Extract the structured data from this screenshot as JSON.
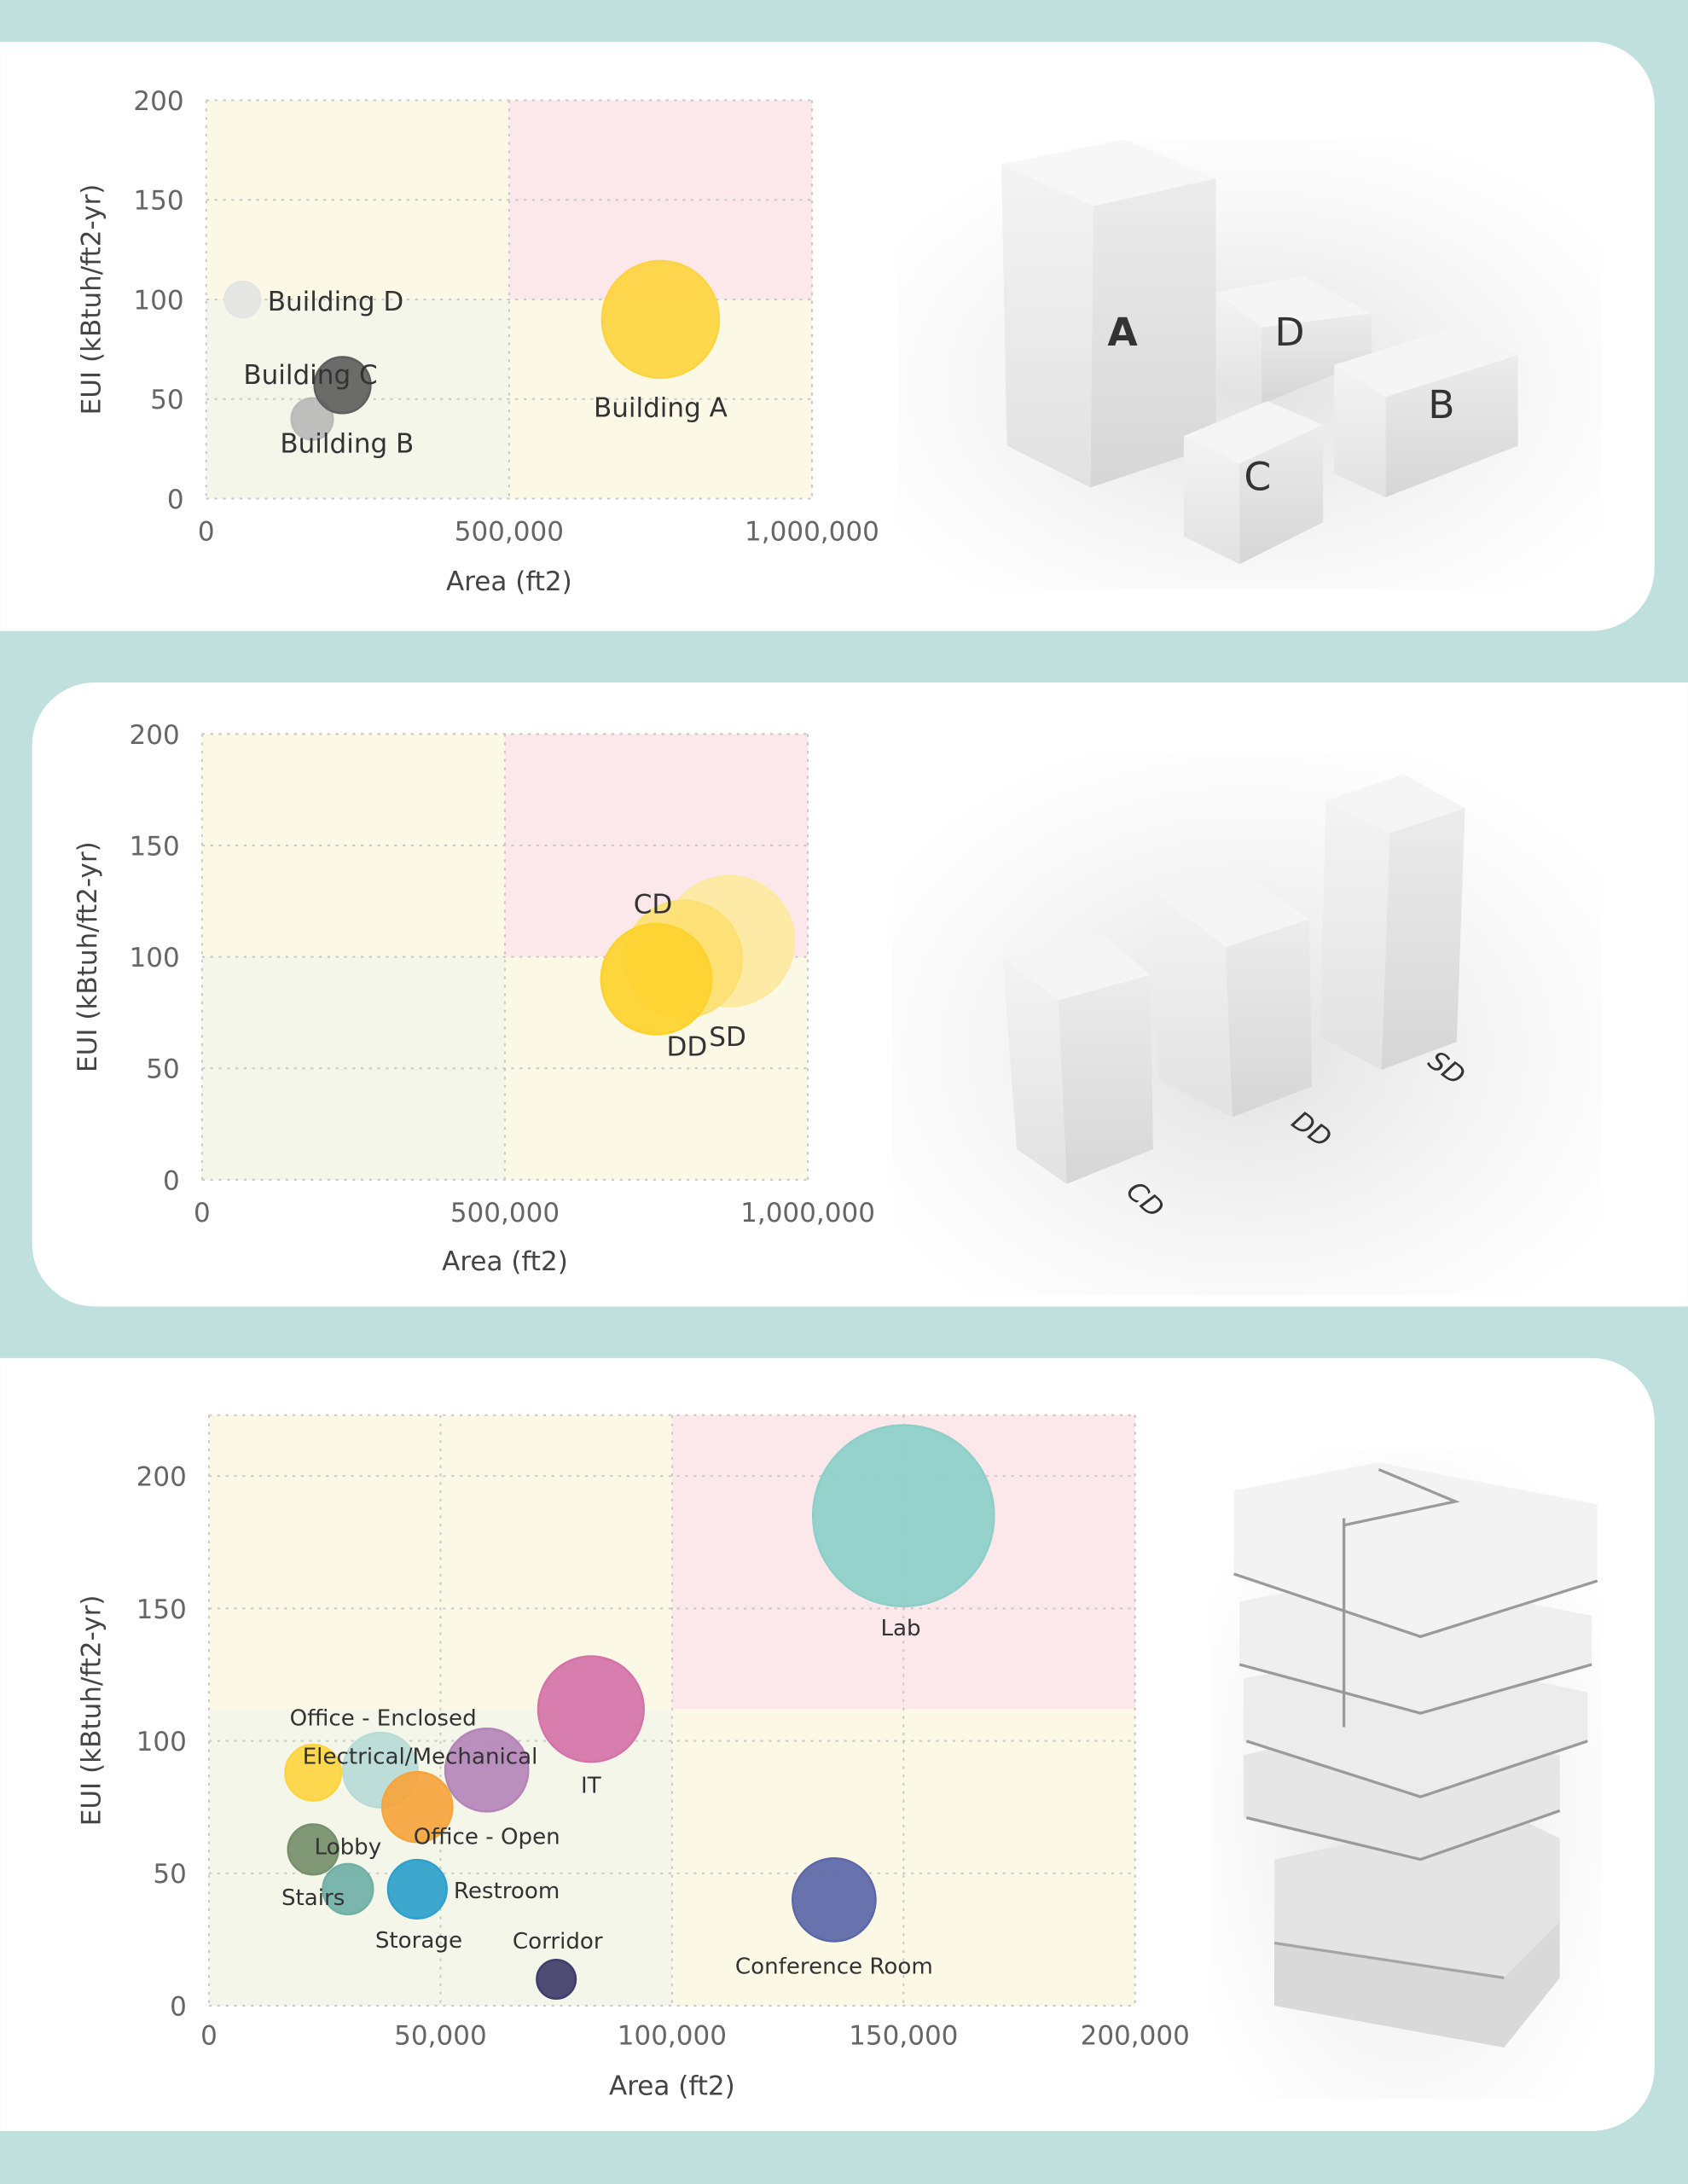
{
  "chart_data": [
    {
      "type": "scatter",
      "xlabel": "Area (ft2)",
      "ylabel": "EUI (kBtuh/ft2-yr)",
      "xlim": [
        0,
        1000000
      ],
      "ylim": [
        0,
        200
      ],
      "xticks": [
        0,
        500000,
        1000000
      ],
      "xtick_labels": [
        "0",
        "500,000",
        "1,000,000"
      ],
      "yticks": [
        0,
        50,
        100,
        150,
        200
      ],
      "ytick_labels": [
        "0",
        "50",
        "100",
        "150",
        "200"
      ],
      "grid": true,
      "quadrant_thresholds": {
        "x": 500000,
        "y": 100
      },
      "quadrant_colors": {
        "low": "#f4f6e9",
        "mixed": "#fbf9e6",
        "high": "#fce8ea"
      },
      "points": [
        {
          "name": "Building D",
          "x": 60000,
          "y": 100,
          "size": 9.4,
          "color": "#e4e4e4"
        },
        {
          "name": "Building B",
          "x": 175000,
          "y": 40,
          "size": 12.6,
          "color": "#b9b9b9"
        },
        {
          "name": "Building C",
          "x": 225000,
          "y": 57,
          "size": 23,
          "color": "#5e5e5e"
        },
        {
          "name": "Building A",
          "x": 750000,
          "y": 90,
          "size": 100,
          "color": "#fdd43f"
        }
      ]
    },
    {
      "type": "scatter",
      "xlabel": "Area (ft2)",
      "ylabel": "EUI (kBtuh/ft2-yr)",
      "xlim": [
        0,
        1000000
      ],
      "ylim": [
        0,
        200
      ],
      "xticks": [
        0,
        500000,
        1000000
      ],
      "xtick_labels": [
        "0",
        "500,000",
        "1,000,000"
      ],
      "yticks": [
        0,
        50,
        100,
        150,
        200
      ],
      "ytick_labels": [
        "0",
        "50",
        "100",
        "150",
        "200"
      ],
      "grid": true,
      "quadrant_thresholds": {
        "x": 500000,
        "y": 100
      },
      "quadrant_colors": {
        "low": "#f4f6e9",
        "mixed": "#fbf9e6",
        "high": "#fce8ea"
      },
      "points": [
        {
          "name": "SD",
          "x": 870000,
          "y": 107,
          "size": 124,
          "color": "#fde9a0"
        },
        {
          "name": "CD",
          "x": 795000,
          "y": 99,
          "size": 100,
          "color": "#fde072"
        },
        {
          "name": "DD",
          "x": 750000,
          "y": 90,
          "size": 89,
          "color": "#fdd22e"
        }
      ]
    },
    {
      "type": "scatter",
      "xlabel": "Area (ft2)",
      "ylabel": "EUI (kBtuh/ft2-yr)",
      "xlim": [
        0,
        200000
      ],
      "ylim": [
        0,
        223
      ],
      "xticks": [
        0,
        50000,
        100000,
        150000,
        200000
      ],
      "xtick_labels": [
        "0",
        "50,000",
        "100,000",
        "150,000",
        "200,000"
      ],
      "yticks": [
        0,
        50,
        100,
        150,
        200
      ],
      "ytick_labels": [
        "0",
        "50",
        "100",
        "150",
        "200"
      ],
      "grid": true,
      "quadrant_thresholds": {
        "x": 100000,
        "y": 112
      },
      "quadrant_colors": {
        "low": "#f4f6e9",
        "mixed": "#fbf9e6",
        "high": "#fce8ea"
      },
      "points": [
        {
          "name": "Lab",
          "x": 150000,
          "y": 185,
          "size": 100,
          "color": "#8ccfc8"
        },
        {
          "name": "IT",
          "x": 82500,
          "y": 112,
          "size": 34,
          "color": "#d573a9"
        },
        {
          "name": "Office - Enclosed",
          "x": 37000,
          "y": 89,
          "size": 17,
          "color": "#b7dbd6"
        },
        {
          "name": "Electrical/Mechanical",
          "x": 45000,
          "y": 75,
          "size": 15,
          "color": "#f6a43c"
        },
        {
          "name": "Office - Open",
          "x": 60000,
          "y": 89,
          "size": 21,
          "color": "#b484b8"
        },
        {
          "name": "Storage",
          "x": 45000,
          "y": 44,
          "size": 10.5,
          "color": "#2ea0cb"
        },
        {
          "name": "Lobby",
          "x": 30000,
          "y": 44,
          "size": 7.7,
          "color": "#70b0a6"
        },
        {
          "name": "Stairs",
          "x": 22500,
          "y": 59,
          "size": 7.7,
          "color": "#758f6a"
        },
        {
          "name": "Restroom",
          "x": 22500,
          "y": 88,
          "size": 9.5,
          "color": "#fdd43f"
        },
        {
          "name": "Corridor",
          "x": 75000,
          "y": 10,
          "size": 4.6,
          "color": "#3f3d6a"
        },
        {
          "name": "Conference Room",
          "x": 135000,
          "y": 40,
          "size": 21,
          "color": "#5b67a8"
        }
      ]
    }
  ],
  "renders": {
    "buildings": {
      "A": "A",
      "B": "B",
      "C": "C",
      "D": "D",
      "accent": "#c9a23a"
    },
    "phases": {
      "CD": "CD",
      "DD": "DD",
      "SD": "SD"
    }
  },
  "colors": {
    "background": "#c0e0de",
    "panel": "#ffffff"
  }
}
